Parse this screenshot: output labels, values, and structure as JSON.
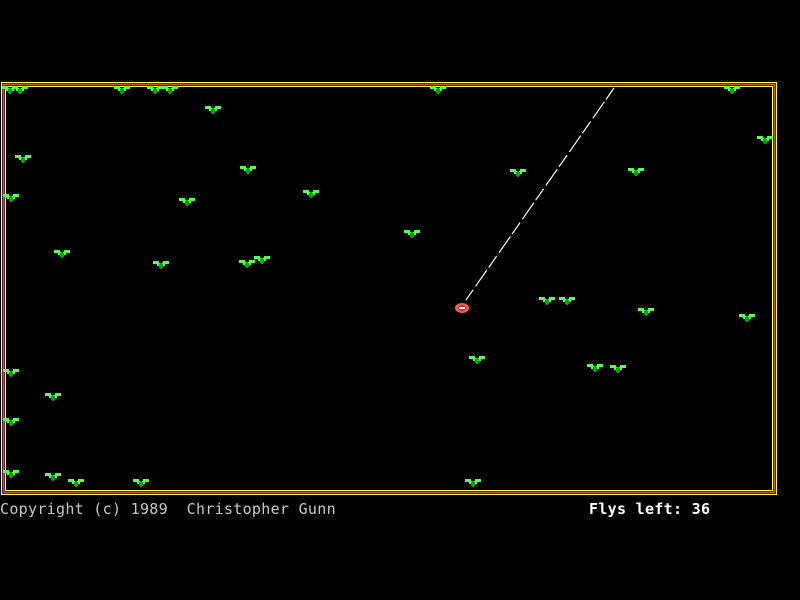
{
  "game": {
    "copyright": "Copyright (c) 1989  Christopher Gunn",
    "flys_left_label": "Flys left:",
    "flys_left": "36"
  },
  "colors": {
    "border_outer": "#ffff55",
    "border_inner": "#c05050",
    "fly": "#55ff55",
    "fly_body": "#00aa00",
    "frog": "#ff5555",
    "tongue": "#ffffff",
    "text": "#ffffff"
  },
  "icons": {
    "fly": "fly-icon",
    "frog": "frog-icon"
  }
}
